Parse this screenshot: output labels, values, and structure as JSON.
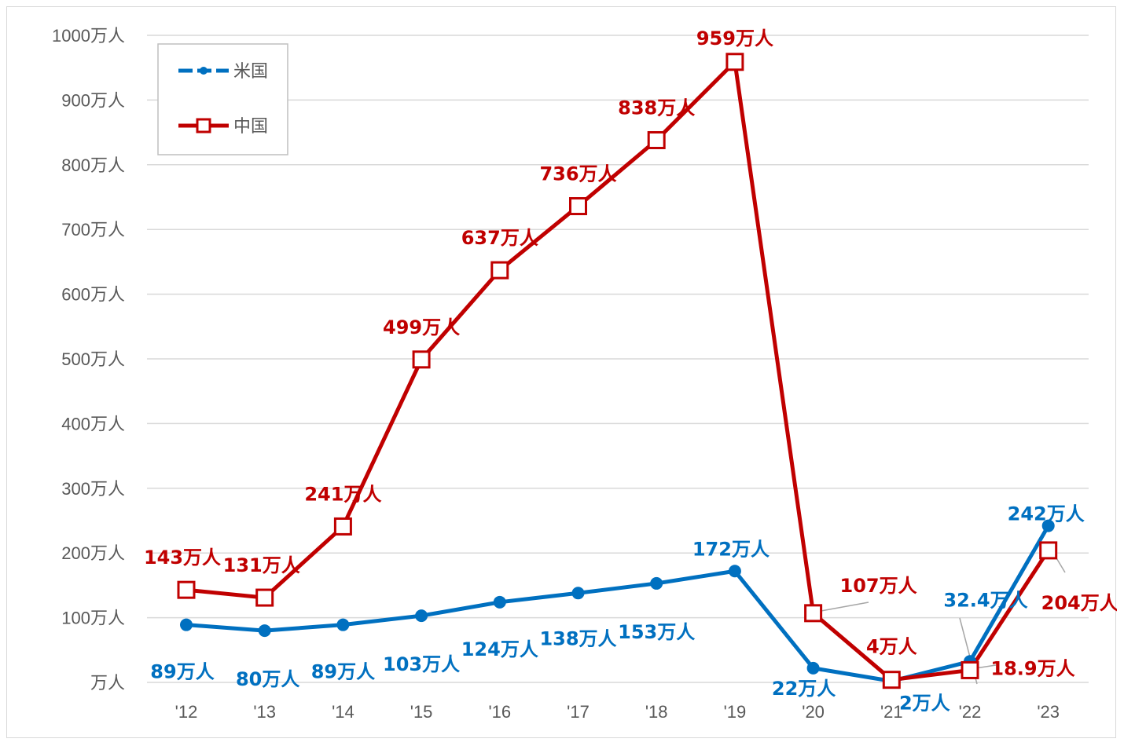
{
  "chart_data": {
    "type": "line",
    "categories": [
      "'12",
      "'13",
      "'14",
      "'15",
      "'16",
      "'17",
      "'18",
      "'19",
      "'20",
      "'21",
      "'22",
      "'23"
    ],
    "ylim": [
      0,
      1000
    ],
    "y_ticks": [
      {
        "value": 0,
        "label": "万人"
      },
      {
        "value": 100,
        "label": "100万人"
      },
      {
        "value": 200,
        "label": "200万人"
      },
      {
        "value": 300,
        "label": "300万人"
      },
      {
        "value": 400,
        "label": "400万人"
      },
      {
        "value": 500,
        "label": "500万人"
      },
      {
        "value": 600,
        "label": "600万人"
      },
      {
        "value": 700,
        "label": "700万人"
      },
      {
        "value": 800,
        "label": "800万人"
      },
      {
        "value": 900,
        "label": "900万人"
      },
      {
        "value": 1000,
        "label": "1000万人"
      }
    ],
    "grid": true,
    "legend_position": "top-left",
    "series": [
      {
        "name": "米国",
        "color": "#0070c0",
        "marker": "circle",
        "values": [
          89,
          80,
          89,
          103,
          124,
          138,
          153,
          172,
          22,
          2,
          32.4,
          242
        ],
        "labels": [
          "89万人",
          "80万人",
          "89万人",
          "103万人",
          "124万人",
          "138万人",
          "153万人",
          "172万人",
          "22万人",
          "2万人",
          "32.4万人",
          "242万人"
        ]
      },
      {
        "name": "中国",
        "color": "#c00000",
        "marker": "square",
        "values": [
          143,
          131,
          241,
          499,
          637,
          736,
          838,
          959,
          107,
          4,
          18.9,
          204
        ],
        "labels": [
          "143万人",
          "131万人",
          "241万人",
          "499万人",
          "637万人",
          "736万人",
          "838万人",
          "959万人",
          "107万人",
          "4万人",
          "18.9万人",
          "204万人"
        ]
      }
    ]
  }
}
